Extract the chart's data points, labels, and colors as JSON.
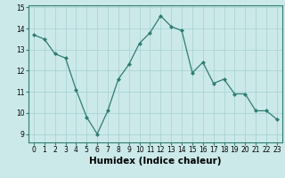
{
  "x": [
    0,
    1,
    2,
    3,
    4,
    5,
    6,
    7,
    8,
    9,
    10,
    11,
    12,
    13,
    14,
    15,
    16,
    17,
    18,
    19,
    20,
    21,
    22,
    23
  ],
  "y": [
    13.7,
    13.5,
    12.8,
    12.6,
    11.1,
    9.8,
    9.0,
    10.1,
    11.6,
    12.3,
    13.3,
    13.8,
    14.6,
    14.1,
    13.9,
    11.9,
    12.4,
    11.4,
    11.6,
    10.9,
    10.9,
    10.1,
    10.1,
    9.7
  ],
  "line_color": "#2e7d72",
  "marker": "D",
  "markersize": 2.0,
  "linewidth": 0.9,
  "bg_color": "#cce9e9",
  "grid_color": "#aad4d4",
  "xlabel": "Humidex (Indice chaleur)",
  "xlabel_fontsize": 7.5,
  "xlabel_fontweight": "bold",
  "xlim": [
    -0.5,
    23.5
  ],
  "ylim": [
    8.6,
    15.1
  ],
  "yticks": [
    9,
    10,
    11,
    12,
    13,
    14,
    15
  ],
  "xticks": [
    0,
    1,
    2,
    3,
    4,
    5,
    6,
    7,
    8,
    9,
    10,
    11,
    12,
    13,
    14,
    15,
    16,
    17,
    18,
    19,
    20,
    21,
    22,
    23
  ],
  "tick_fontsize": 5.5
}
